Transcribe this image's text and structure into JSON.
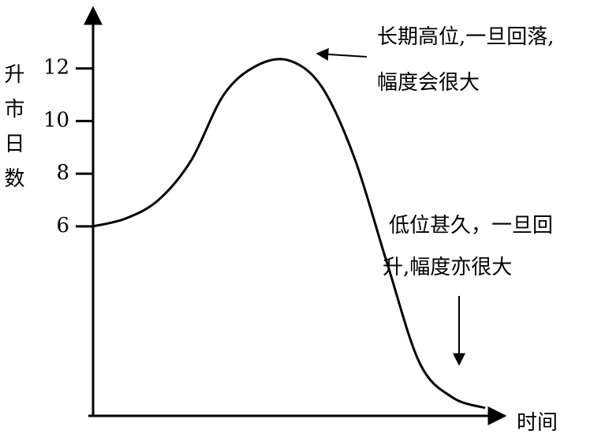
{
  "chart_data": {
    "type": "line",
    "y_label": "升市日数",
    "x_label": "时间",
    "annotations": [
      "长期高位,一旦回落,",
      "幅度会很大",
      "低位甚久，一旦回",
      "升,幅度亦很大"
    ],
    "categories": [
      null,
      null,
      null,
      null,
      null,
      null,
      null,
      null,
      null,
      null,
      null,
      null,
      null
    ],
    "values": [
      6.0,
      6.3,
      7.0,
      8.5,
      11.0,
      12.1,
      12.3,
      11.3,
      8.6,
      4.6,
      0.8,
      -0.5,
      -0.9
    ],
    "color": "#000000",
    "ylim": [
      -1.2,
      14.3
    ],
    "yticks": [
      6,
      8,
      10,
      12
    ]
  }
}
